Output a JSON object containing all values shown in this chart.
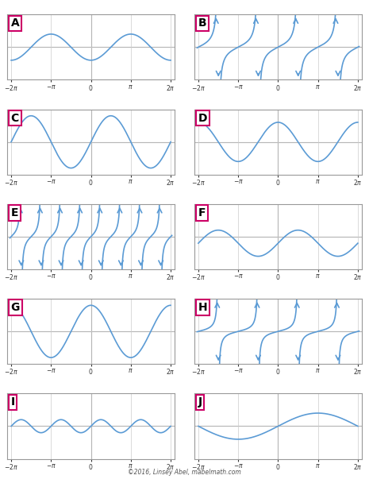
{
  "graphs": [
    {
      "label": "A",
      "type": "cos",
      "amplitude": 1,
      "freq": 1,
      "phase": 0,
      "vshift": 0,
      "ylim": [
        -2.5,
        2.5
      ],
      "invert": true
    },
    {
      "label": "B",
      "type": "tan",
      "amplitude": 1,
      "freq": 1,
      "phase": 0,
      "vshift": 0,
      "ylim": [
        -5,
        5
      ]
    },
    {
      "label": "C",
      "type": "sin",
      "amplitude": 2,
      "freq": 1,
      "phase": 0,
      "vshift": 0,
      "ylim": [
        -2.5,
        2.5
      ],
      "invert": false
    },
    {
      "label": "D",
      "type": "cos",
      "amplitude": 1.5,
      "freq": 1,
      "phase": 0,
      "vshift": 0,
      "ylim": [
        -2.5,
        2.5
      ],
      "invert": false
    },
    {
      "label": "E",
      "type": "tan",
      "amplitude": 1,
      "freq": 2,
      "phase": 0,
      "vshift": 0,
      "ylim": [
        -5,
        5
      ]
    },
    {
      "label": "F",
      "type": "sin",
      "amplitude": 1,
      "freq": 1,
      "phase": 0,
      "vshift": -0.5,
      "ylim": [
        -2.5,
        2.5
      ],
      "invert": false
    },
    {
      "label": "G",
      "type": "cos",
      "amplitude": 2,
      "freq": 1,
      "phase": 0,
      "vshift": 0,
      "ylim": [
        -2.5,
        2.5
      ],
      "invert": false
    },
    {
      "label": "H",
      "type": "tan",
      "amplitude": 0.5,
      "freq": 1,
      "phase": 0,
      "vshift": 0,
      "ylim": [
        -5,
        5
      ]
    },
    {
      "label": "I",
      "type": "sin",
      "amplitude": 0.5,
      "freq": 2,
      "phase": 0,
      "vshift": 0,
      "ylim": [
        -2.5,
        2.5
      ],
      "invert": false
    },
    {
      "label": "J",
      "type": "sin",
      "amplitude": 1,
      "freq": 0.5,
      "phase": 0,
      "vshift": 0,
      "ylim": [
        -2.5,
        2.5
      ],
      "invert": false
    }
  ],
  "curve_color": "#5b9bd5",
  "label_color": "#cc0066",
  "bg_color": "#ffffff",
  "grid_color": "#cccccc",
  "axis_color": "#888888",
  "tick_color": "#333333",
  "copyright": "©2016, Linsey Abel, mabelmath.com"
}
